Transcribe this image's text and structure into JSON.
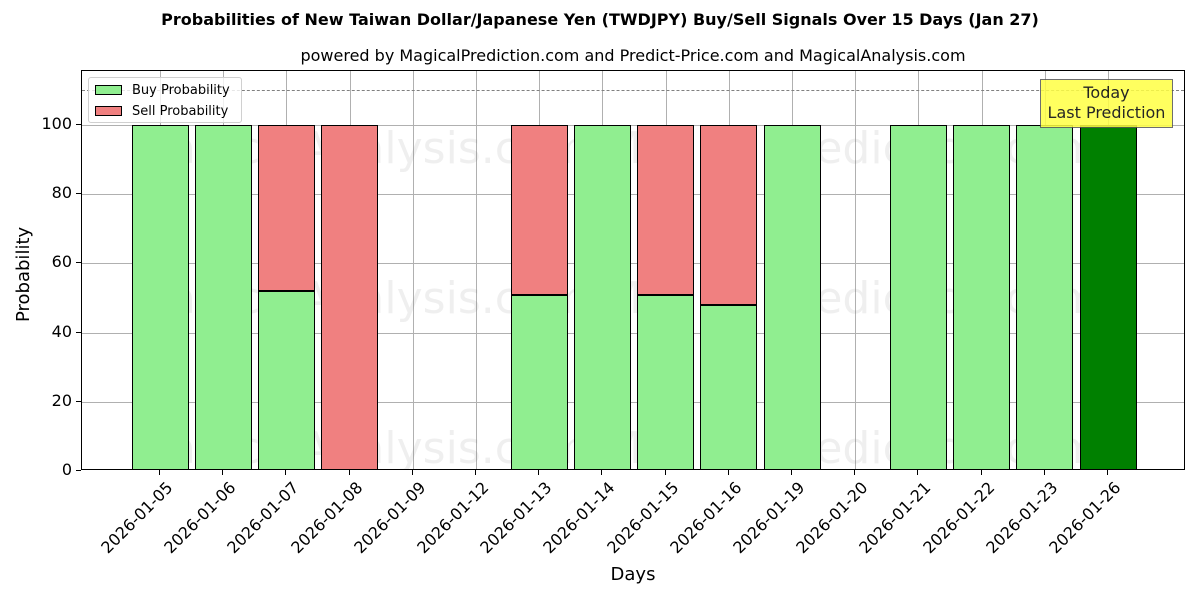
{
  "chart_data": {
    "type": "bar",
    "stacked": true,
    "title": "Probabilities of New Taiwan Dollar/Japanese Yen (TWDJPY) Buy/Sell Signals Over 15 Days (Jan 27)",
    "subtitle": "powered by MagicalPrediction.com and Predict-Price.com and MagicalAnalysis.com",
    "xlabel": "Days",
    "ylabel": "Probability",
    "ylim": [
      0,
      115
    ],
    "yticks": [
      0,
      20,
      40,
      60,
      80,
      100
    ],
    "grid": true,
    "legend_position": "upper left",
    "reference_line": {
      "y": 110,
      "style": "dashed",
      "color": "#808080"
    },
    "categories": [
      "2026-01-05",
      "2026-01-06",
      "2026-01-07",
      "2026-01-08",
      "2026-01-09",
      "2026-01-12",
      "2026-01-13",
      "2026-01-14",
      "2026-01-15",
      "2026-01-16",
      "2026-01-19",
      "2026-01-20",
      "2026-01-21",
      "2026-01-22",
      "2026-01-23",
      "2026-01-26"
    ],
    "series": [
      {
        "name": "Buy Probability",
        "color": "#90ee90",
        "values": [
          100,
          100,
          52,
          0,
          0,
          0,
          51,
          100,
          51,
          48,
          100,
          0,
          100,
          100,
          100,
          100
        ]
      },
      {
        "name": "Sell Probability",
        "color": "#f08080",
        "values": [
          0,
          0,
          48,
          100,
          0,
          0,
          49,
          0,
          49,
          52,
          0,
          0,
          0,
          0,
          0,
          0
        ]
      }
    ],
    "highlight": {
      "category": "2026-01-26",
      "color": "#008000"
    },
    "annotation": {
      "text_line1": "Today",
      "text_line2": "Last Prediction",
      "background": "#ffff44"
    },
    "watermarks": [
      "MagicalAnalysis.com",
      "MagicalPrediction.com"
    ]
  },
  "legend": {
    "buy_label": "Buy Probability",
    "sell_label": "Sell Probability"
  }
}
